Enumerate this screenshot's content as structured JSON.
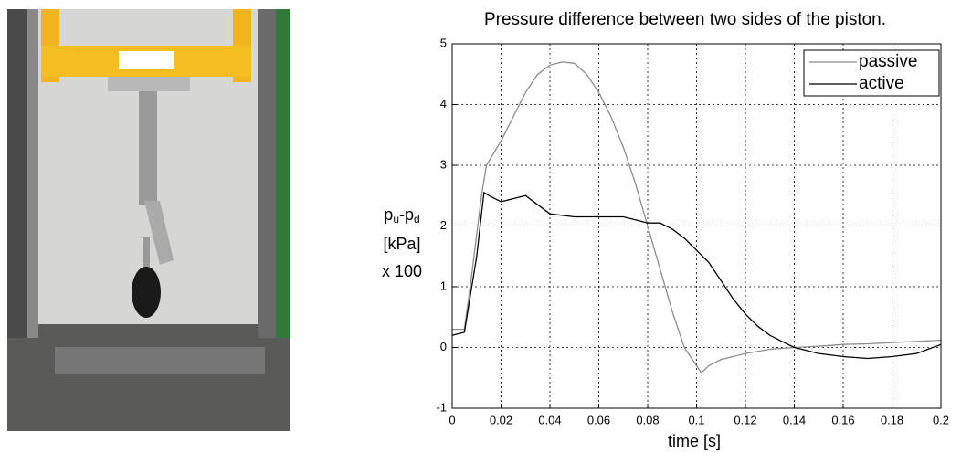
{
  "chart_data": {
    "type": "line",
    "title": "Pressure difference between two sides of the piston.",
    "xlabel": "time [s]",
    "ylabel": {
      "symbol": [
        "p",
        "u",
        "-p",
        "d"
      ],
      "lines": [
        "[kPa]",
        "x 100"
      ]
    },
    "xlim": [
      0,
      0.2
    ],
    "ylim": [
      -1,
      5
    ],
    "xticks": [
      0,
      0.02,
      0.04,
      0.06,
      0.08,
      0.1,
      0.12,
      0.14,
      0.16,
      0.18,
      0.2
    ],
    "yticks": [
      -1,
      0,
      1,
      2,
      3,
      4,
      5
    ],
    "grid": true,
    "legend": "upper-right",
    "series": [
      {
        "name": "passive",
        "color": "#8c8c8c",
        "x": [
          0,
          0.005,
          0.008,
          0.012,
          0.014,
          0.02,
          0.025,
          0.03,
          0.035,
          0.04,
          0.045,
          0.05,
          0.055,
          0.06,
          0.065,
          0.07,
          0.075,
          0.08,
          0.085,
          0.09,
          0.095,
          0.1,
          0.102,
          0.105,
          0.11,
          0.12,
          0.13,
          0.14,
          0.15,
          0.16,
          0.17,
          0.18,
          0.19,
          0.2
        ],
        "values": [
          0.3,
          0.3,
          1.2,
          2.5,
          3.0,
          3.4,
          3.8,
          4.2,
          4.5,
          4.65,
          4.7,
          4.68,
          4.5,
          4.2,
          3.8,
          3.3,
          2.7,
          2.0,
          1.3,
          0.6,
          0.0,
          -0.3,
          -0.42,
          -0.3,
          -0.2,
          -0.1,
          -0.03,
          0.0,
          0.02,
          0.05,
          0.06,
          0.08,
          0.1,
          0.12
        ]
      },
      {
        "name": "active",
        "color": "#000000",
        "x": [
          0,
          0.005,
          0.01,
          0.013,
          0.015,
          0.02,
          0.025,
          0.03,
          0.035,
          0.04,
          0.05,
          0.06,
          0.07,
          0.075,
          0.08,
          0.085,
          0.09,
          0.095,
          0.1,
          0.105,
          0.11,
          0.115,
          0.12,
          0.125,
          0.13,
          0.135,
          0.14,
          0.145,
          0.15,
          0.16,
          0.17,
          0.18,
          0.19,
          0.2
        ],
        "values": [
          0.2,
          0.25,
          1.5,
          2.55,
          2.5,
          2.4,
          2.45,
          2.5,
          2.35,
          2.2,
          2.15,
          2.15,
          2.15,
          2.1,
          2.05,
          2.05,
          1.95,
          1.8,
          1.6,
          1.4,
          1.1,
          0.8,
          0.55,
          0.35,
          0.2,
          0.1,
          0.0,
          -0.05,
          -0.1,
          -0.15,
          -0.18,
          -0.15,
          -0.1,
          0.05
        ]
      }
    ]
  }
}
